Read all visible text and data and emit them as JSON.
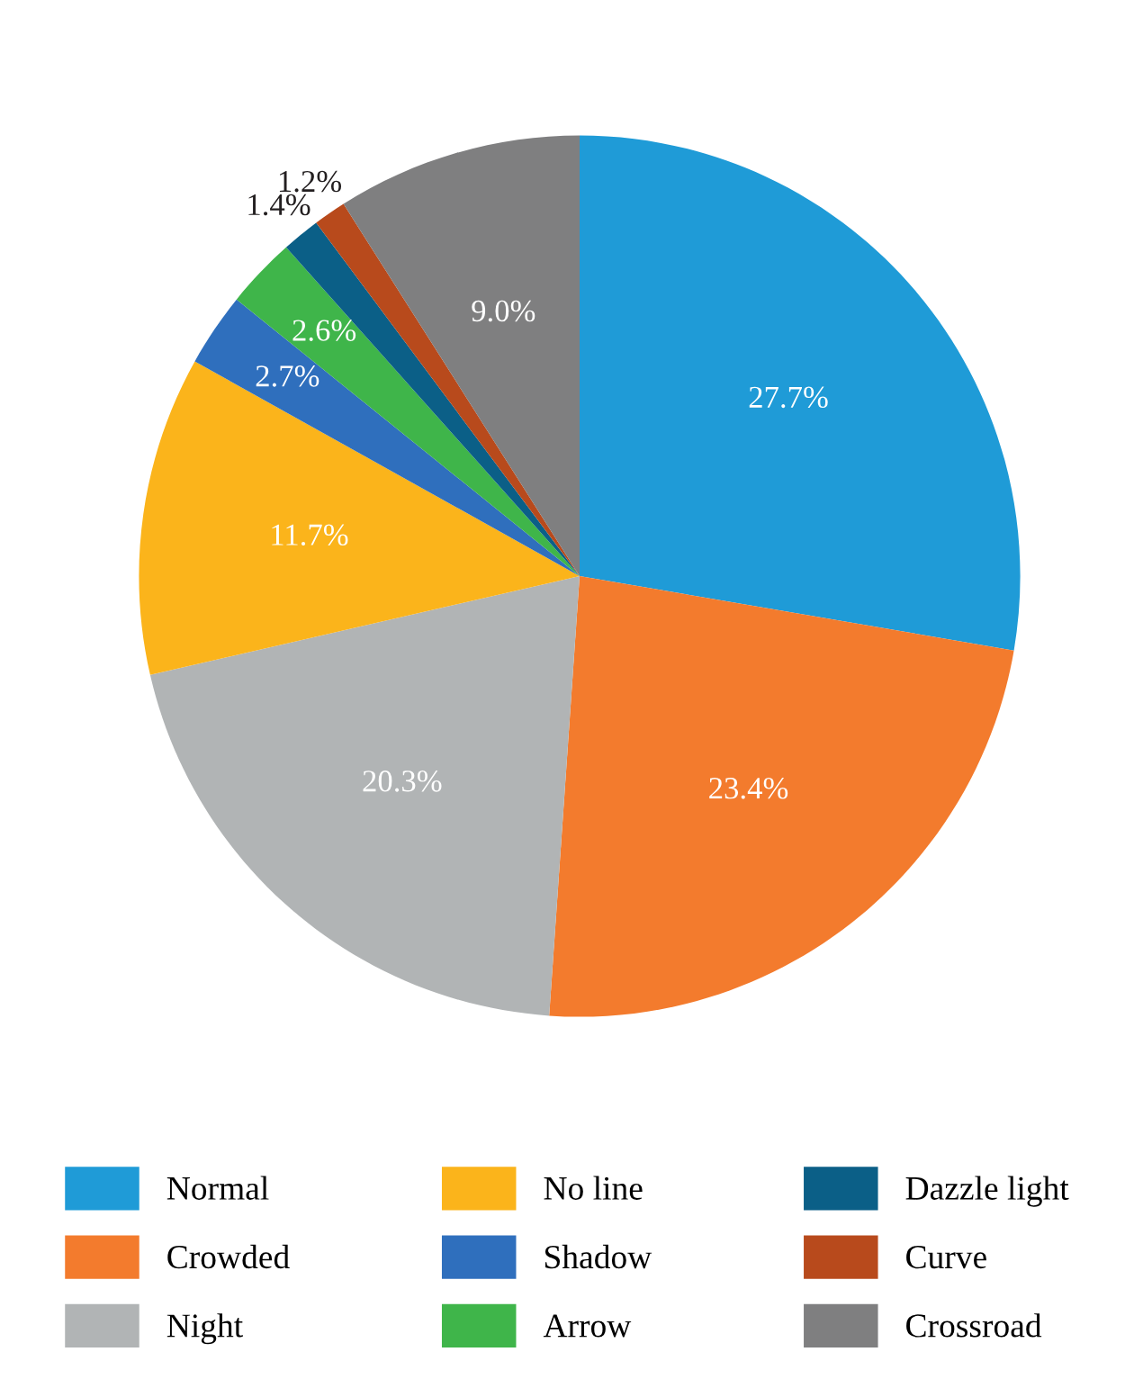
{
  "chart_data": {
    "type": "pie",
    "categories": [
      "Normal",
      "Crowded",
      "Night",
      "No line",
      "Shadow",
      "Arrow",
      "Dazzle light",
      "Curve",
      "Crossroad"
    ],
    "values": [
      27.7,
      23.4,
      20.3,
      11.7,
      2.7,
      2.6,
      1.4,
      1.2,
      9.0
    ],
    "colors": [
      "#1f9bd7",
      "#f37b2d",
      "#b1b4b5",
      "#fbb41b",
      "#2f6fbd",
      "#3fb54a",
      "#0b5f87",
      "#b84a1c",
      "#7f7f80"
    ],
    "value_labels": [
      "27.7%",
      "23.4%",
      "20.3%",
      "11.7%",
      "2.7%",
      "2.6%",
      "1.4%",
      "1.2%",
      "9.0%"
    ],
    "legend": "bottom"
  }
}
